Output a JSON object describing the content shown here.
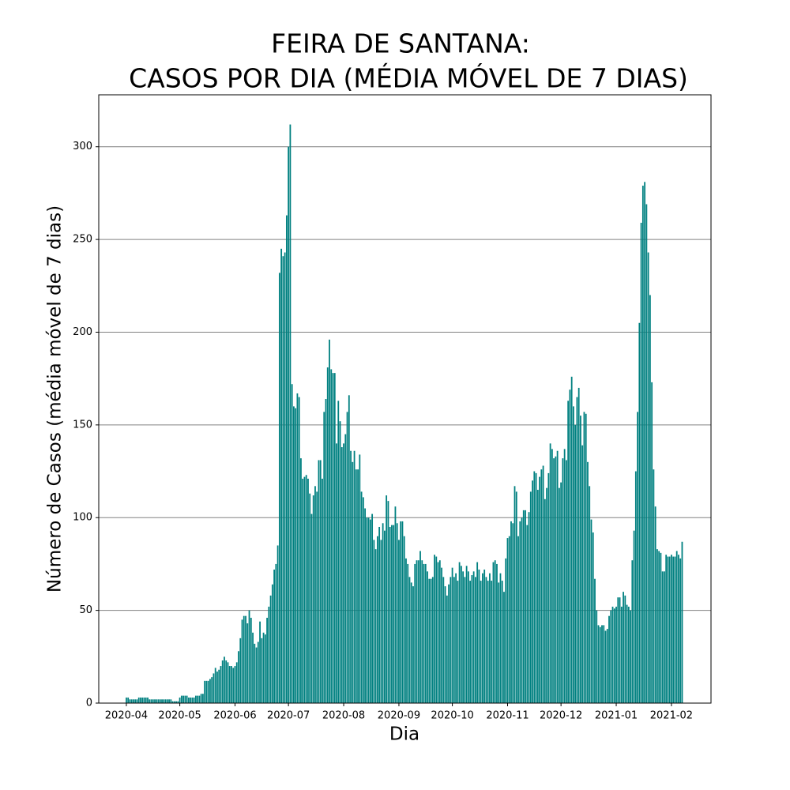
{
  "chart_data": {
    "type": "bar",
    "title": [
      "FEIRA DE SANTANA:",
      "CASOS POR DIA (MÉDIA MÓVEL DE 7 DIAS)"
    ],
    "xlabel": "Dia",
    "ylabel": "Número de Casos (média móvel de 7 dias)",
    "color": "#008080",
    "grid": true,
    "xlim": [
      18337.5,
      18681.2
    ],
    "ylim": [
      0,
      328
    ],
    "yticks": [
      0,
      50,
      100,
      150,
      200,
      250,
      300
    ],
    "xticks": [
      {
        "value": 18353,
        "label": "2020-04"
      },
      {
        "value": 18383,
        "label": "2020-05"
      },
      {
        "value": 18414,
        "label": "2020-06"
      },
      {
        "value": 18444,
        "label": "2020-07"
      },
      {
        "value": 18475,
        "label": "2020-08"
      },
      {
        "value": 18506,
        "label": "2020-09"
      },
      {
        "value": 18536,
        "label": "2020-10"
      },
      {
        "value": 18567,
        "label": "2020-11"
      },
      {
        "value": 18597,
        "label": "2020-12"
      },
      {
        "value": 18628,
        "label": "2021-01"
      },
      {
        "value": 18659,
        "label": "2021-02"
      }
    ],
    "x": [
      18353,
      18354,
      18355,
      18356,
      18357,
      18358,
      18359,
      18360,
      18361,
      18362,
      18363,
      18364,
      18365,
      18366,
      18367,
      18368,
      18369,
      18370,
      18371,
      18372,
      18373,
      18374,
      18375,
      18376,
      18377,
      18378,
      18379,
      18380,
      18381,
      18382,
      18383,
      18384,
      18385,
      18386,
      18387,
      18388,
      18389,
      18390,
      18391,
      18392,
      18393,
      18394,
      18395,
      18396,
      18397,
      18398,
      18399,
      18400,
      18401,
      18402,
      18403,
      18404,
      18405,
      18406,
      18407,
      18408,
      18409,
      18410,
      18411,
      18412,
      18413,
      18414,
      18415,
      18416,
      18417,
      18418,
      18419,
      18420,
      18421,
      18422,
      18423,
      18424,
      18425,
      18426,
      18427,
      18428,
      18429,
      18430,
      18431,
      18432,
      18433,
      18434,
      18435,
      18436,
      18437,
      18438,
      18439,
      18440,
      18441,
      18442,
      18443,
      18444,
      18445,
      18446,
      18447,
      18448,
      18449,
      18450,
      18451,
      18452,
      18453,
      18454,
      18455,
      18456,
      18457,
      18458,
      18459,
      18460,
      18461,
      18462,
      18463,
      18464,
      18465,
      18466,
      18467,
      18468,
      18469,
      18470,
      18471,
      18472,
      18473,
      18474,
      18475,
      18476,
      18477,
      18478,
      18479,
      18480,
      18481,
      18482,
      18483,
      18484,
      18485,
      18486,
      18487,
      18488,
      18489,
      18490,
      18491,
      18492,
      18493,
      18494,
      18495,
      18496,
      18497,
      18498,
      18499,
      18500,
      18501,
      18502,
      18503,
      18504,
      18505,
      18506,
      18507,
      18508,
      18509,
      18510,
      18511,
      18512,
      18513,
      18514,
      18515,
      18516,
      18517,
      18518,
      18519,
      18520,
      18521,
      18522,
      18523,
      18524,
      18525,
      18526,
      18527,
      18528,
      18529,
      18530,
      18531,
      18532,
      18533,
      18534,
      18535,
      18536,
      18537,
      18538,
      18539,
      18540,
      18541,
      18542,
      18543,
      18544,
      18545,
      18546,
      18547,
      18548,
      18549,
      18550,
      18551,
      18552,
      18553,
      18554,
      18555,
      18556,
      18557,
      18558,
      18559,
      18560,
      18561,
      18562,
      18563,
      18564,
      18565,
      18566,
      18567,
      18568,
      18569,
      18570,
      18571,
      18572,
      18573,
      18574,
      18575,
      18576,
      18577,
      18578,
      18579,
      18580,
      18581,
      18582,
      18583,
      18584,
      18585,
      18586,
      18587,
      18588,
      18589,
      18590,
      18591,
      18592,
      18593,
      18594,
      18595,
      18596,
      18597,
      18598,
      18599,
      18600,
      18601,
      18602,
      18603,
      18604,
      18605,
      18606,
      18607,
      18608,
      18609,
      18610,
      18611,
      18612,
      18613,
      18614,
      18615,
      18616,
      18617,
      18618,
      18619,
      18620,
      18621,
      18622,
      18623,
      18624,
      18625,
      18626,
      18627,
      18628,
      18629,
      18630,
      18631,
      18632,
      18633,
      18634,
      18635,
      18636,
      18637,
      18638,
      18639,
      18640,
      18641,
      18642,
      18643,
      18644,
      18645,
      18646,
      18647,
      18648,
      18649,
      18650,
      18651,
      18652,
      18653,
      18654,
      18655,
      18656,
      18657,
      18658,
      18659,
      18660,
      18661,
      18662,
      18663,
      18664,
      18665
    ],
    "values": [
      3,
      3,
      2,
      2,
      2,
      2,
      2,
      3,
      3,
      3,
      3,
      3,
      3,
      2,
      2,
      2,
      2,
      2,
      2,
      2,
      2,
      2,
      2,
      2,
      2,
      2,
      1,
      1,
      1,
      1,
      3,
      4,
      4,
      4,
      4,
      3,
      3,
      3,
      3,
      4,
      4,
      4,
      5,
      5,
      12,
      12,
      12,
      13,
      14,
      16,
      19,
      17,
      18,
      20,
      23,
      25,
      23,
      22,
      20,
      20,
      19,
      20,
      22,
      28,
      35,
      45,
      47,
      47,
      43,
      50,
      46,
      38,
      32,
      30,
      33,
      44,
      35,
      38,
      37,
      46,
      52,
      58,
      64,
      72,
      75,
      85,
      232,
      245,
      241,
      243,
      263,
      300,
      312,
      172,
      160,
      159,
      167,
      165,
      132,
      121,
      122,
      123,
      121,
      113,
      102,
      112,
      117,
      114,
      131,
      131,
      121,
      157,
      164,
      181,
      196,
      180,
      178,
      178,
      140,
      163,
      152,
      138,
      140,
      145,
      157,
      166,
      136,
      130,
      136,
      126,
      126,
      134,
      114,
      111,
      105,
      100,
      100,
      99,
      102,
      88,
      83,
      90,
      95,
      88,
      97,
      93,
      112,
      109,
      95,
      96,
      96,
      106,
      97,
      88,
      98,
      98,
      90,
      78,
      75,
      68,
      65,
      63,
      75,
      77,
      77,
      82,
      77,
      75,
      75,
      71,
      67,
      67,
      68,
      80,
      79,
      76,
      77,
      73,
      68,
      63,
      58,
      64,
      68,
      73,
      68,
      70,
      66,
      76,
      74,
      71,
      68,
      74,
      71,
      66,
      69,
      71,
      68,
      76,
      72,
      66,
      70,
      72,
      68,
      66,
      70,
      66,
      76,
      77,
      75,
      65,
      70,
      66,
      60,
      78,
      89,
      90,
      98,
      97,
      117,
      114,
      90,
      98,
      100,
      104,
      104,
      96,
      103,
      114,
      120,
      125,
      124,
      115,
      122,
      126,
      128,
      110,
      116,
      124,
      140,
      137,
      132,
      133,
      136,
      116,
      119,
      132,
      137,
      131,
      163,
      169,
      176,
      160,
      150,
      165,
      170,
      155,
      139,
      157,
      156,
      130,
      117,
      99,
      92,
      67,
      50,
      42,
      41,
      42,
      42,
      39,
      40,
      47,
      50,
      52,
      51,
      52,
      57,
      57,
      52,
      60,
      58,
      53,
      52,
      50,
      77,
      93,
      125,
      157,
      205,
      259,
      279,
      281,
      269,
      243,
      220,
      173,
      126,
      106,
      83,
      82,
      81,
      71,
      71,
      80,
      79,
      79,
      80,
      79,
      79,
      82,
      80,
      78,
      87
    ]
  }
}
